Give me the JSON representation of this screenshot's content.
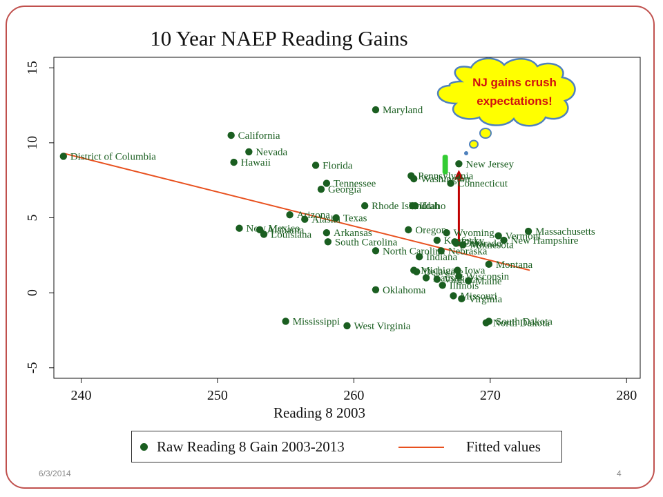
{
  "slide": {
    "date": "6/3/2014",
    "page_number": "4",
    "callout": [
      "NJ gains crush",
      "expectations!"
    ]
  },
  "legend": {
    "raw_label": "Raw Reading 8 Gain 2003-2013",
    "fit_label": "Fitted values"
  },
  "colors": {
    "points": "#1a5e20",
    "labels": "#1a5e20",
    "fit_line": "#e8501e",
    "arrow": "#c00000",
    "highlight": "#33cc33",
    "bubble_fill": "#ffff00",
    "callout_text": "#d01010",
    "frame": "#c0504d"
  },
  "chart_data": {
    "type": "scatter",
    "title": "10 Year NAEP Reading Gains",
    "xlabel": "Reading 8 2003",
    "ylabel": "",
    "xlim": [
      238,
      281
    ],
    "ylim": [
      -5.7,
      15.7
    ],
    "xticks": [
      240,
      250,
      260,
      270,
      280
    ],
    "yticks": [
      -5,
      0,
      5,
      10,
      15
    ],
    "series": [
      {
        "name": "Raw Reading 8 Gain 2003-2013",
        "points": [
          {
            "label": "District of Columbia",
            "x": 238.7,
            "y": 9.1
          },
          {
            "label": "California",
            "x": 251.0,
            "y": 10.5
          },
          {
            "label": "Nevada",
            "x": 252.3,
            "y": 9.4
          },
          {
            "label": "Hawaii",
            "x": 251.2,
            "y": 8.7
          },
          {
            "label": "Maryland",
            "x": 261.6,
            "y": 12.2
          },
          {
            "label": "Florida",
            "x": 257.2,
            "y": 8.5
          },
          {
            "label": "Tennessee",
            "x": 258.0,
            "y": 7.3
          },
          {
            "label": "Georgia",
            "x": 257.6,
            "y": 6.9
          },
          {
            "label": "Rhode Island",
            "x": 260.8,
            "y": 5.8
          },
          {
            "label": "Utah",
            "x": 264.3,
            "y": 5.8
          },
          {
            "label": "Idaho",
            "x": 264.5,
            "y": 5.8
          },
          {
            "label": "Pennsylvania",
            "x": 264.2,
            "y": 7.8
          },
          {
            "label": "Washington",
            "x": 264.4,
            "y": 7.6
          },
          {
            "label": "New Jersey",
            "x": 267.7,
            "y": 8.6
          },
          {
            "label": "Connecticut",
            "x": 267.1,
            "y": 7.3
          },
          {
            "label": "Arizona",
            "x": 255.3,
            "y": 5.2
          },
          {
            "label": "Alaska",
            "x": 256.4,
            "y": 4.9
          },
          {
            "label": "Texas",
            "x": 258.7,
            "y": 5.0
          },
          {
            "label": "New Mexico",
            "x": 251.6,
            "y": 4.3
          },
          {
            "label": "Alabama",
            "x": 253.1,
            "y": 4.2
          },
          {
            "label": "Louisiana",
            "x": 253.4,
            "y": 3.9
          },
          {
            "label": "Arkansas",
            "x": 258.0,
            "y": 4.0
          },
          {
            "label": "South Carolina",
            "x": 258.1,
            "y": 3.4
          },
          {
            "label": "North Carolina",
            "x": 261.6,
            "y": 2.8
          },
          {
            "label": "Oregon",
            "x": 264.0,
            "y": 4.2
          },
          {
            "label": "Wyoming",
            "x": 266.8,
            "y": 4.0
          },
          {
            "label": "Kentucky",
            "x": 266.1,
            "y": 3.5
          },
          {
            "label": "Nebraska",
            "x": 266.4,
            "y": 2.8
          },
          {
            "label": "Ohio",
            "x": 267.4,
            "y": 3.4
          },
          {
            "label": "Colorado",
            "x": 267.5,
            "y": 3.3
          },
          {
            "label": "Minnesota",
            "x": 268.0,
            "y": 3.2
          },
          {
            "label": "Indiana",
            "x": 264.8,
            "y": 2.4
          },
          {
            "label": "Vermont",
            "x": 270.6,
            "y": 3.8
          },
          {
            "label": "New Hampshire",
            "x": 271.0,
            "y": 3.5
          },
          {
            "label": "Massachusetts",
            "x": 272.8,
            "y": 4.1
          },
          {
            "label": "Montana",
            "x": 269.9,
            "y": 1.9
          },
          {
            "label": "Michigan",
            "x": 264.4,
            "y": 1.5
          },
          {
            "label": "Delaware",
            "x": 264.6,
            "y": 1.4
          },
          {
            "label": "Iowa",
            "x": 267.6,
            "y": 1.5
          },
          {
            "label": "Kansas",
            "x": 265.3,
            "y": 1.0
          },
          {
            "label": "Virginia",
            "x": 266.1,
            "y": 0.9
          },
          {
            "label": "Wisconsin",
            "x": 267.7,
            "y": 1.1
          },
          {
            "label": "Maine",
            "x": 268.4,
            "y": 0.8
          },
          {
            "label": "Illinois",
            "x": 266.5,
            "y": 0.5
          },
          {
            "label": "Oklahoma",
            "x": 261.6,
            "y": 0.2
          },
          {
            "label": "Missouri",
            "x": 267.3,
            "y": -0.2
          },
          {
            "label": "Virginia",
            "x": 267.9,
            "y": -0.4
          },
          {
            "label": "Mississippi",
            "x": 255.0,
            "y": -1.9
          },
          {
            "label": "West Virginia",
            "x": 259.5,
            "y": -2.2
          },
          {
            "label": "South Dakota",
            "x": 269.9,
            "y": -1.9
          },
          {
            "label": "North Dakota",
            "x": 269.7,
            "y": -2.0
          }
        ]
      },
      {
        "name": "Fitted values",
        "type": "line",
        "x": [
          238.7,
          272.9
        ],
        "y": [
          9.3,
          1.5
        ]
      }
    ],
    "annotations": [
      {
        "type": "arrow",
        "x": 267.7,
        "y_from": 3.1,
        "y_to": 8.1
      },
      {
        "type": "highlight",
        "x": [
          266.5,
          266.9
        ],
        "y": [
          7.9,
          9.2
        ]
      }
    ]
  }
}
